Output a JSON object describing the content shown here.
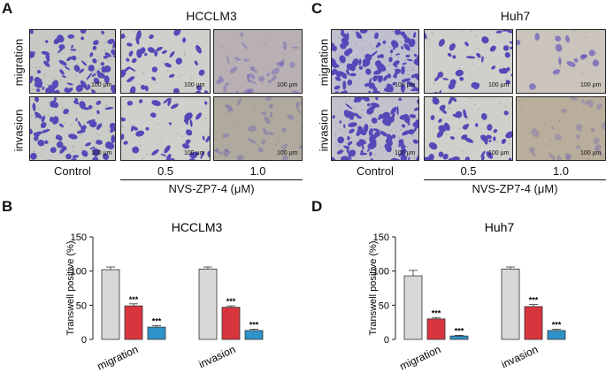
{
  "panels": {
    "A": {
      "letter": "A",
      "title": "HCCLM3",
      "rows": [
        "migration",
        "invasion"
      ],
      "scalebar": "100 μm",
      "col_labels": [
        "Control",
        "0.5",
        "1.0"
      ],
      "treatment": "NVS-ZP7-4 (μM)"
    },
    "C": {
      "letter": "C",
      "title": "Huh7",
      "rows": [
        "migration",
        "invasion"
      ],
      "scalebar": "100 μm",
      "col_labels": [
        "Control",
        "0.5",
        "1.0"
      ],
      "treatment": "NVS-ZP7-4 (μM)"
    },
    "B": {
      "letter": "B"
    },
    "D": {
      "letter": "D"
    }
  },
  "colors": {
    "control": "#d8d8d8",
    "dose05": "#d9353e",
    "dose10": "#2e93c9",
    "stain": "#5548b8"
  },
  "chart_data": [
    {
      "type": "bar",
      "title": "HCCLM3",
      "ylabel": "Transwell positive (%)",
      "categories": [
        "migration",
        "invasion"
      ],
      "ylim": [
        0,
        150
      ],
      "yticks": [
        0,
        50,
        100,
        150
      ],
      "series": [
        {
          "values": [
            102,
            103
          ],
          "errors": [
            4,
            3
          ],
          "color": "#d8d8d8",
          "labels": [
            "",
            ""
          ]
        },
        {
          "values": [
            49,
            47
          ],
          "errors": [
            3,
            2
          ],
          "color": "#d9353e",
          "labels": [
            "***",
            "***"
          ]
        },
        {
          "values": [
            18,
            13
          ],
          "errors": [
            2,
            2
          ],
          "color": "#2e93c9",
          "labels": [
            "***",
            "***"
          ]
        }
      ]
    },
    {
      "type": "bar",
      "title": "Huh7",
      "ylabel": "Transwell positive (%)",
      "categories": [
        "migration",
        "invasion"
      ],
      "ylim": [
        0,
        150
      ],
      "yticks": [
        0,
        50,
        100,
        150
      ],
      "series": [
        {
          "values": [
            93,
            103
          ],
          "errors": [
            8,
            3
          ],
          "color": "#d8d8d8",
          "labels": [
            "",
            ""
          ]
        },
        {
          "values": [
            30,
            48
          ],
          "errors": [
            2,
            3
          ],
          "color": "#d9353e",
          "labels": [
            "***",
            "***"
          ]
        },
        {
          "values": [
            5,
            13
          ],
          "errors": [
            1,
            2
          ],
          "color": "#2e93c9",
          "labels": [
            "***",
            "***"
          ]
        }
      ]
    }
  ]
}
